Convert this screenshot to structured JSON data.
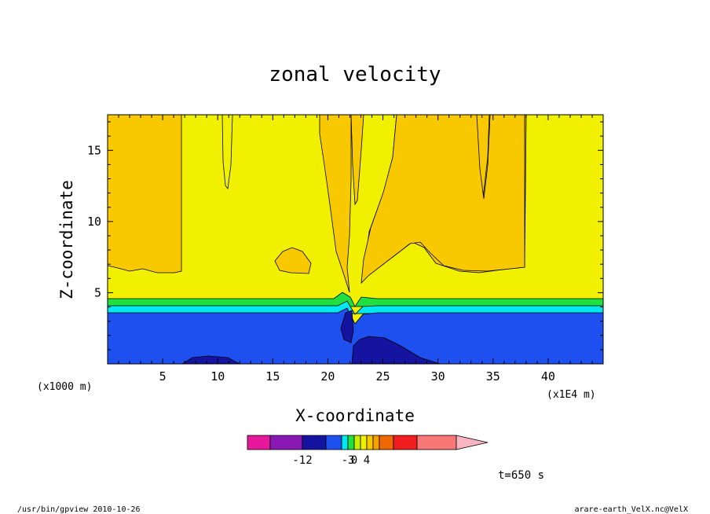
{
  "chart_data": {
    "type": "contour",
    "title": "zonal velocity",
    "xlabel": "X-coordinate",
    "ylabel": "Z-coordinate",
    "x_scale_note": "(x1E4 m)",
    "y_scale_note": "(x1000 m)",
    "xlim": [
      0,
      45
    ],
    "ylim": [
      0,
      17.5
    ],
    "x_ticks": [
      5,
      10,
      15,
      20,
      25,
      30,
      35,
      40
    ],
    "y_ticks": [
      5,
      10,
      15
    ],
    "colorbar": {
      "colors": [
        "#e8189c",
        "#8a18b4",
        "#1414a0",
        "#1e50f0",
        "#00e8f0",
        "#20e040",
        "#c8f000",
        "#f0f000",
        "#f8c800",
        "#f8a000",
        "#f06800",
        "#f01e1e",
        "#f87878",
        "#f8b4c0"
      ],
      "labels": [
        {
          "text": "-12",
          "index": 1
        },
        {
          "text": "-3",
          "index": 4
        },
        {
          "text": "0",
          "index": 5
        },
        {
          "text": "4",
          "index": 7
        }
      ]
    },
    "time_label": "t=650 s"
  },
  "footer": {
    "left": "/usr/bin/gpview   2010-10-26",
    "right": "arare-earth_VelX.nc@VelX"
  }
}
